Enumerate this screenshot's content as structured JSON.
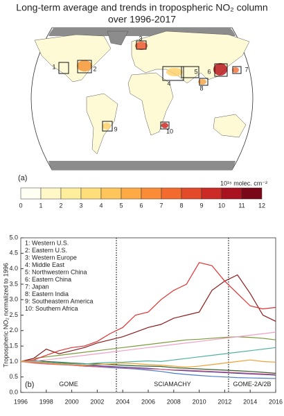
{
  "map": {
    "title": [
      "Long-term average and trends in tropospheric NO₂ column",
      "over 1996-2017"
    ],
    "panel_label": "(a)",
    "regions": [
      "1",
      "2",
      "3",
      "4",
      "5",
      "6",
      "7",
      "8",
      "9",
      "10"
    ],
    "colorbar": {
      "ticks": [
        0,
        1,
        2,
        3,
        4,
        5,
        6,
        7,
        8,
        9,
        10,
        11,
        12
      ],
      "unit": "10¹⁵ molec. cm⁻²",
      "colors": [
        "#fffef2",
        "#fff8c6",
        "#ffee9c",
        "#ffdd78",
        "#fec65a",
        "#fdaa45",
        "#fa8c38",
        "#f26a2e",
        "#e34a2a",
        "#cc2a26",
        "#a8131f",
        "#7a0818"
      ]
    }
  },
  "chart_data": {
    "type": "line",
    "ylabel": "Tropospheric NO₂ normalized to 1996",
    "panel_label": "(b)",
    "x": [
      1996,
      1997,
      1998,
      1999,
      2000,
      2001,
      2002,
      2003,
      2004,
      2005,
      2006,
      2007,
      2008,
      2009,
      2010,
      2011,
      2012,
      2013,
      2014,
      2015,
      2016
    ],
    "xlim": [
      1996,
      2016
    ],
    "xticks": [
      1996,
      1998,
      2000,
      2002,
      2004,
      2006,
      2008,
      2010,
      2012,
      2014,
      2016
    ],
    "ylim": [
      0,
      5
    ],
    "yticks": [
      {
        "value": 0,
        "label": "0.0"
      },
      {
        "value": 0.5,
        "label": "0.5"
      },
      {
        "value": 1,
        "label": "1.0"
      },
      {
        "value": 1.5,
        "label": "1.5"
      },
      {
        "value": 2,
        "label": "2.0"
      },
      {
        "value": 2.5,
        "label": "2.5"
      },
      {
        "value": 3,
        "label": "3.0"
      },
      {
        "value": 3.5,
        "label": "3.5"
      },
      {
        "value": 4,
        "label": "4.0"
      },
      {
        "value": 4.5,
        "label": "4.5"
      },
      {
        "value": 5,
        "label": "5.0"
      }
    ],
    "instrument_breaks": [
      2003.5,
      2012.3
    ],
    "annotations": [
      "GOME",
      "SCIAMACHY",
      "GOME-2A/2B"
    ],
    "series": [
      {
        "name": "1: Western U.S.",
        "color": "#2b3fa8",
        "values": [
          1,
          0.97,
          0.95,
          0.93,
          0.9,
          0.88,
          0.86,
          0.84,
          0.82,
          0.8,
          0.78,
          0.75,
          0.72,
          0.7,
          0.68,
          0.66,
          0.64,
          0.62,
          0.6,
          0.58,
          0.56
        ]
      },
      {
        "name": "2: Eastern U.S.",
        "color": "#4a7bc8",
        "values": [
          1,
          0.98,
          0.95,
          0.92,
          0.88,
          0.85,
          0.83,
          0.8,
          0.78,
          0.76,
          0.72,
          0.68,
          0.62,
          0.58,
          0.55,
          0.52,
          0.5,
          0.48,
          0.47,
          0.46,
          0.45
        ]
      },
      {
        "name": "3: Western Europe",
        "color": "#2e5e2e",
        "values": [
          1,
          1.05,
          1.0,
          0.98,
          0.95,
          0.93,
          0.92,
          0.9,
          0.88,
          0.86,
          0.85,
          0.84,
          0.8,
          0.78,
          0.76,
          0.74,
          0.72,
          0.7,
          0.68,
          0.65,
          0.62
        ]
      },
      {
        "name": "4: Middle East",
        "color": "#7a9a3a",
        "values": [
          1,
          1.1,
          1.15,
          1.2,
          1.25,
          1.3,
          1.35,
          1.4,
          1.45,
          1.5,
          1.55,
          1.6,
          1.65,
          1.7,
          1.72,
          1.75,
          1.78,
          1.8,
          1.78,
          1.75,
          1.7
        ]
      },
      {
        "name": "5: Northwestern China",
        "color": "#8b1a1a",
        "values": [
          1,
          1.1,
          1.4,
          1.25,
          1.35,
          1.45,
          1.6,
          1.7,
          1.8,
          1.95,
          2.1,
          2.2,
          2.4,
          2.5,
          2.6,
          3.3,
          3.6,
          3.8,
          3.2,
          2.5,
          2.3
        ]
      },
      {
        "name": "6: Eastern China",
        "color": "#e03030",
        "values": [
          1,
          1.05,
          1.2,
          1.35,
          1.45,
          1.5,
          1.65,
          1.9,
          2.1,
          2.5,
          2.6,
          3.0,
          3.3,
          3.5,
          4.2,
          4.1,
          3.6,
          3.2,
          2.8,
          2.7,
          2.75
        ]
      },
      {
        "name": "7: Japan",
        "color": "#e06080",
        "values": [
          1,
          0.95,
          0.92,
          0.9,
          0.88,
          0.85,
          0.83,
          0.82,
          0.8,
          0.78,
          0.76,
          0.75,
          0.73,
          0.72,
          0.7,
          0.68,
          0.66,
          0.64,
          0.62,
          0.6,
          0.58
        ]
      },
      {
        "name": "8: Eastern India",
        "color": "#f0a0c0",
        "values": [
          1,
          1.02,
          1.05,
          1.1,
          1.15,
          1.2,
          1.25,
          1.3,
          1.35,
          1.4,
          1.45,
          1.5,
          1.55,
          1.6,
          1.65,
          1.7,
          1.75,
          1.8,
          1.85,
          1.9,
          1.95
        ]
      },
      {
        "name": "9: Southeastern America",
        "color": "#50b0a0",
        "values": [
          1,
          1.0,
          0.98,
          0.95,
          0.93,
          0.92,
          0.95,
          0.97,
          0.98,
          1.0,
          1.02,
          1.0,
          1.05,
          1.1,
          1.15,
          1.2,
          1.25,
          1.3,
          1.35,
          1.4,
          1.45
        ]
      },
      {
        "name": "10: Southern Africa",
        "color": "#f0a030",
        "values": [
          1,
          0.98,
          0.95,
          0.92,
          0.9,
          0.88,
          0.9,
          0.92,
          0.95,
          0.93,
          0.9,
          0.88,
          0.85,
          0.82,
          0.85,
          0.9,
          0.95,
          1.0,
          1.05,
          1.0,
          0.98
        ]
      }
    ]
  }
}
